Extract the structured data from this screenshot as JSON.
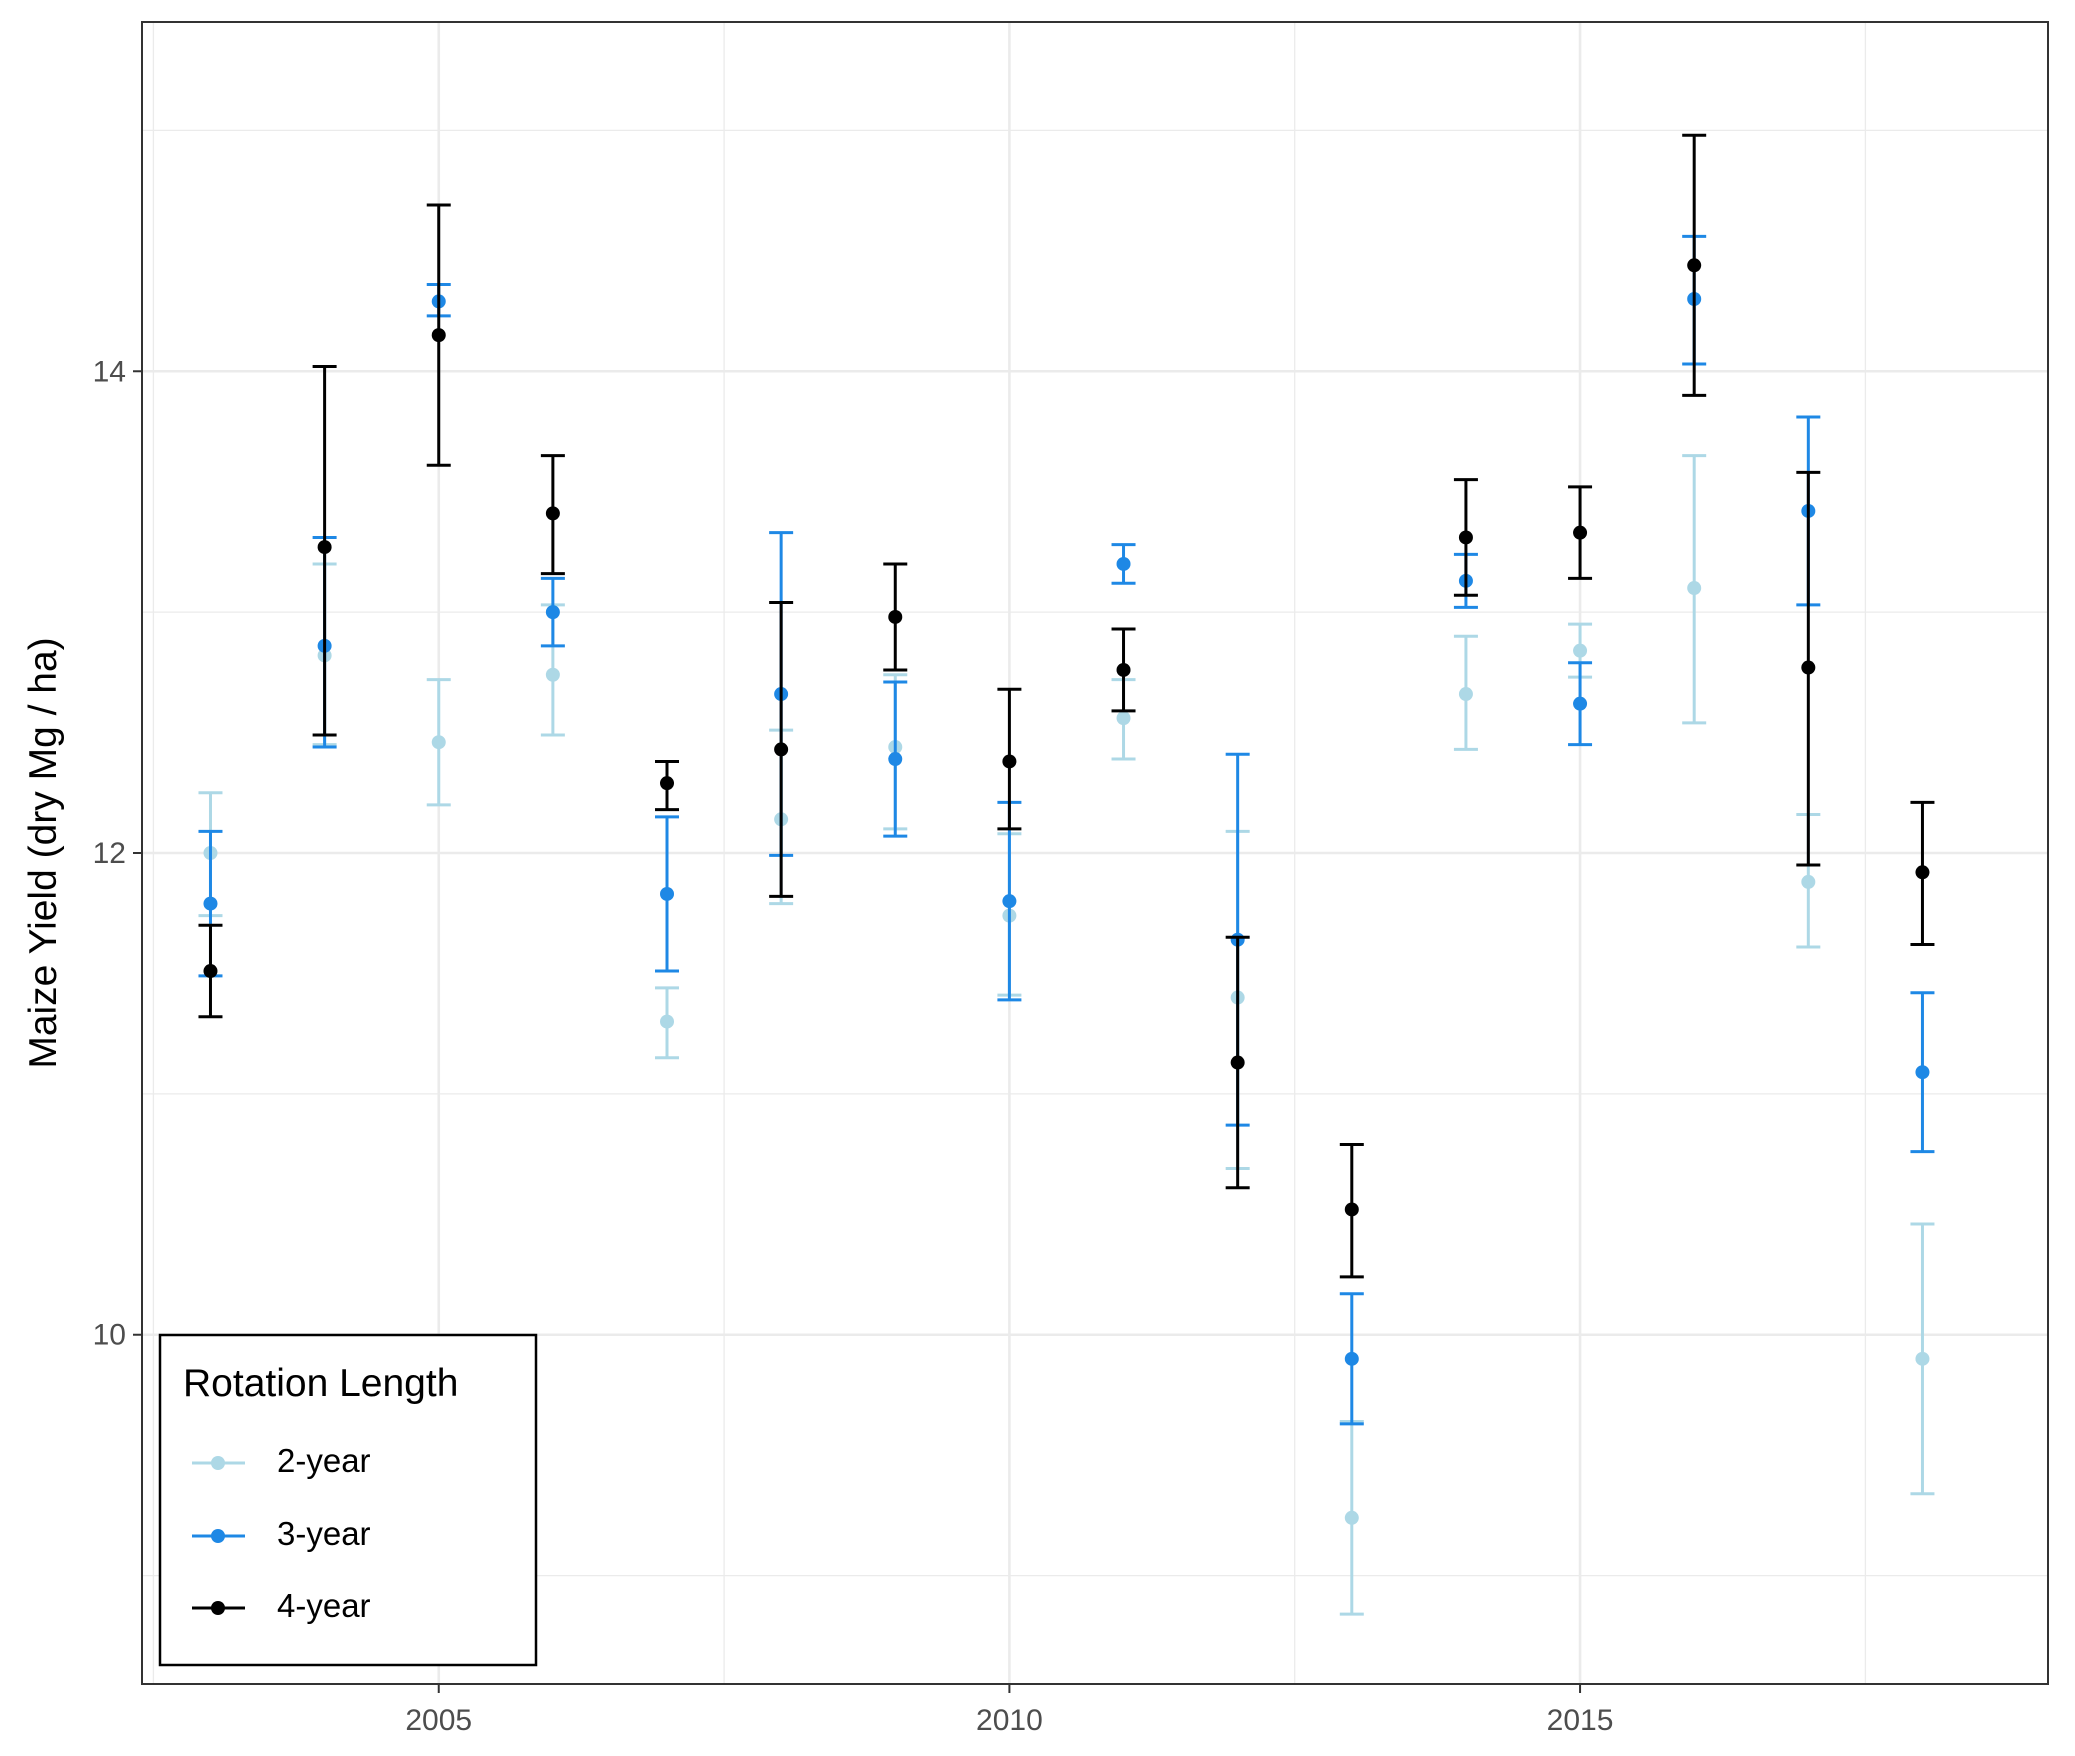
{
  "chart_data": {
    "type": "scatter",
    "xlabel": "",
    "ylabel": "Maize Yield (dry Mg / ha)",
    "xlim": [
      2002.4,
      2019.1
    ],
    "ylim": [
      8.55,
      15.45
    ],
    "x_ticks": [
      2005,
      2010,
      2015
    ],
    "x_tick_labels": [
      "2005",
      "2010",
      "2015"
    ],
    "x_minor_ticks": [
      2002.5,
      2007.5,
      2012.5,
      2017.5
    ],
    "y_ticks": [
      10,
      12,
      14
    ],
    "y_tick_labels": [
      "10",
      "12",
      "14"
    ],
    "y_minor_ticks": [
      9,
      11,
      13,
      15
    ],
    "grid": true,
    "error_bars": true,
    "legend": {
      "title": "Rotation Length",
      "position": "bottom-left",
      "entries": [
        "2-year",
        "3-year",
        "4-year"
      ]
    },
    "series": [
      {
        "name": "2-year",
        "color": "#add8e6",
        "x": [
          2003,
          2004,
          2005,
          2006,
          2007,
          2008,
          2009,
          2010,
          2011,
          2012,
          2013,
          2014,
          2015,
          2016,
          2017,
          2018
        ],
        "y": [
          12.0,
          12.82,
          12.46,
          12.74,
          11.3,
          12.14,
          12.44,
          11.74,
          12.56,
          11.4,
          9.24,
          12.66,
          12.84,
          13.1,
          11.88,
          9.9
        ],
        "y_low": [
          11.74,
          12.45,
          12.2,
          12.49,
          11.15,
          11.79,
          12.1,
          11.41,
          12.39,
          10.69,
          8.84,
          12.43,
          12.73,
          12.54,
          11.61,
          9.34
        ],
        "y_high": [
          12.25,
          13.2,
          12.72,
          13.03,
          11.44,
          12.51,
          12.74,
          12.08,
          12.72,
          12.09,
          9.64,
          12.9,
          12.95,
          13.65,
          12.16,
          10.46
        ]
      },
      {
        "name": "3-year",
        "color": "#1e88e5",
        "x": [
          2003,
          2004,
          2005,
          2006,
          2007,
          2008,
          2009,
          2010,
          2011,
          2012,
          2013,
          2014,
          2015,
          2016,
          2017,
          2018
        ],
        "y": [
          11.79,
          12.86,
          14.29,
          13.0,
          11.83,
          12.66,
          12.39,
          11.8,
          13.2,
          11.64,
          9.9,
          13.13,
          12.62,
          14.3,
          13.42,
          11.09
        ],
        "y_low": [
          11.49,
          12.44,
          14.23,
          12.86,
          11.51,
          11.99,
          12.07,
          11.39,
          13.12,
          10.87,
          9.63,
          13.02,
          12.45,
          14.03,
          13.03,
          10.76
        ],
        "y_high": [
          12.09,
          13.31,
          14.36,
          13.14,
          12.15,
          13.33,
          12.71,
          12.21,
          13.28,
          12.41,
          10.17,
          13.24,
          12.79,
          14.56,
          13.81,
          11.42
        ]
      },
      {
        "name": "4-year",
        "color": "#000000",
        "x": [
          2003,
          2004,
          2005,
          2006,
          2007,
          2008,
          2009,
          2010,
          2011,
          2012,
          2013,
          2014,
          2015,
          2016,
          2017,
          2018
        ],
        "y": [
          11.51,
          13.27,
          14.15,
          13.41,
          12.29,
          12.43,
          12.98,
          12.38,
          12.76,
          11.13,
          10.52,
          13.31,
          13.33,
          14.44,
          12.77,
          11.92
        ],
        "y_low": [
          11.32,
          12.49,
          13.61,
          13.16,
          12.18,
          11.82,
          12.76,
          12.1,
          12.59,
          10.61,
          10.24,
          13.07,
          13.14,
          13.9,
          11.95,
          11.62
        ],
        "y_high": [
          11.7,
          14.02,
          14.69,
          13.65,
          12.38,
          13.04,
          13.2,
          12.68,
          12.93,
          11.65,
          10.79,
          13.55,
          13.52,
          14.98,
          13.58,
          12.21
        ]
      }
    ]
  }
}
